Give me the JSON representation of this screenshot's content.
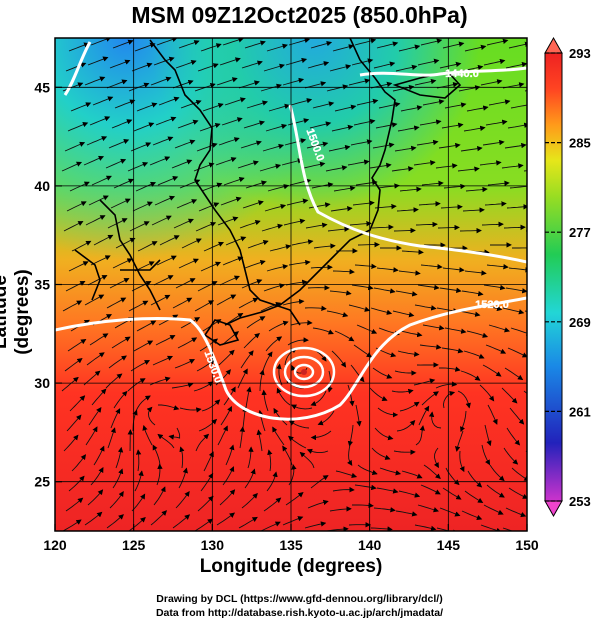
{
  "title": "MSM 09Z12Oct2025 (850.0hPa)",
  "x_axis": {
    "label": "Longitude (degrees)",
    "range": [
      120,
      150
    ],
    "ticks": [
      "120",
      "125",
      "130",
      "135",
      "140",
      "145",
      "150"
    ]
  },
  "y_axis": {
    "label": "Latitude  (degrees)",
    "range": [
      22.5,
      47.5
    ],
    "ticks": [
      "25",
      "30",
      "35",
      "40",
      "45"
    ]
  },
  "colorbar": {
    "range": [
      253,
      293
    ],
    "ticks": [
      "293",
      "285",
      "277",
      "269",
      "261",
      "253"
    ],
    "colors": [
      "#cc33cc",
      "#1a1acc",
      "#1a88e6",
      "#22d6d6",
      "#22cc55",
      "#99dd22",
      "#e6e61a",
      "#ff9a1a",
      "#ff4422",
      "#ee2222"
    ]
  },
  "contours": [
    {
      "label": "1440.0",
      "lat_lon_hint": "northern contour near 46N"
    },
    {
      "label": "1500.0",
      "lat_lon_hint": "around 43N"
    },
    {
      "label": "1520.0",
      "lat_lon_hint": "around 34N east"
    },
    {
      "label": "1530.0",
      "lat_lon_hint": "around 32N west"
    }
  ],
  "features": {
    "typhoon_center_lonlat": [
      135.6,
      31.2
    ],
    "western_vortex_lonlat": [
      126.2,
      28.5
    ],
    "eastern_vortex_lonlat": [
      145.4,
      29.3
    ]
  },
  "credit": {
    "line1": "Drawing by DCL (https://www.gfd-dennou.org/library/dcl/)",
    "line2": "Data from http://database.rish.kyoto-u.ac.jp/arch/jmadata/"
  }
}
